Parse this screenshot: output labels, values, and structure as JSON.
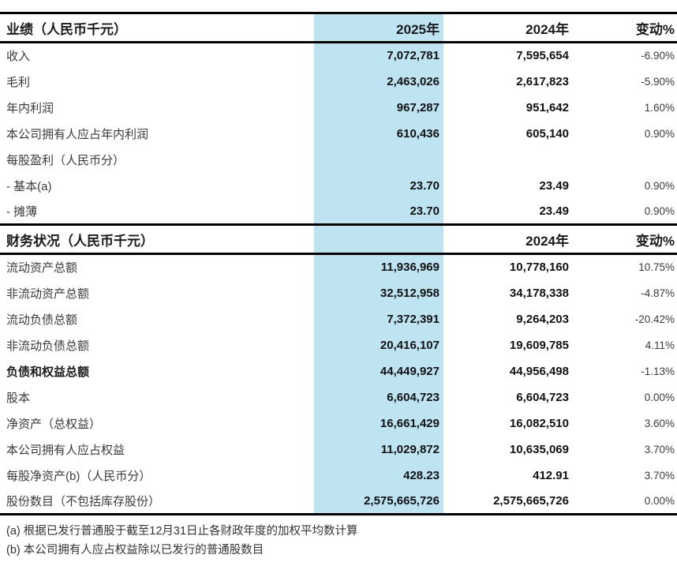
{
  "table": {
    "highlight_color": "#BEE4F2",
    "sections": [
      {
        "header": {
          "title": "业绩（人民币千元）",
          "col2025": "2025年",
          "col2024": "2024年",
          "change": "变动%"
        },
        "rows": [
          {
            "label": "收入",
            "v2025": "7,072,781",
            "v2024": "7,595,654",
            "change": "-6.90%"
          },
          {
            "label": "毛利",
            "v2025": "2,463,026",
            "v2024": "2,617,823",
            "change": "-5.90%"
          },
          {
            "label": "年内利润",
            "v2025": "967,287",
            "v2024": "951,642",
            "change": "1.60%"
          },
          {
            "label": "本公司拥有人应占年内利润",
            "v2025": "610,436",
            "v2024": "605,140",
            "change": "0.90%"
          },
          {
            "label": "每股盈利（人民币分）",
            "v2025": "",
            "v2024": "",
            "change": ""
          },
          {
            "label": "- 基本(a)",
            "v2025": "23.70",
            "v2024": "23.49",
            "change": "0.90%"
          },
          {
            "label": "- 摊薄",
            "v2025": "23.70",
            "v2024": "23.49",
            "change": "0.90%"
          }
        ]
      },
      {
        "header": {
          "title": "财务状况（人民币千元）",
          "col2025": "",
          "col2024": "2024年",
          "change": "变动%"
        },
        "rows": [
          {
            "label": "流动资产总额",
            "v2025": "11,936,969",
            "v2024": "10,778,160",
            "change": "10.75%"
          },
          {
            "label": "非流动资产总额",
            "v2025": "32,512,958",
            "v2024": "34,178,338",
            "change": "-4.87%"
          },
          {
            "label": "流动负债总额",
            "v2025": "7,372,391",
            "v2024": "9,264,203",
            "change": "-20.42%"
          },
          {
            "label": "非流动负债总额",
            "v2025": "20,416,107",
            "v2024": "19,609,785",
            "change": "4.11%"
          },
          {
            "label": "负债和权益总额",
            "bold_label": true,
            "v2025": "44,449,927",
            "v2024": "44,956,498",
            "change": "-1.13%"
          },
          {
            "label": "股本",
            "v2025": "6,604,723",
            "v2024": "6,604,723",
            "change": "0.00%"
          },
          {
            "label": "净资产（总权益）",
            "v2025": "16,661,429",
            "v2024": "16,082,510",
            "change": "3.60%"
          },
          {
            "label": "本公司拥有人应占权益",
            "v2025": "11,029,872",
            "v2024": "10,635,069",
            "change": "3.70%"
          },
          {
            "label": "每股净资产(b)（人民币分）",
            "v2025": "428.23",
            "v2024": "412.91",
            "change": "3.70%"
          },
          {
            "label": "股份数目（不包括库存股份）",
            "v2025": "2,575,665,726",
            "v2024": "2,575,665,726",
            "change": "0.00%"
          }
        ]
      }
    ],
    "footnotes": [
      "(a) 根据已发行普通股于截至12月31日止各财政年度的加权平均数计算",
      "(b) 本公司拥有人应占权益除以已发行的普通股数目"
    ]
  }
}
